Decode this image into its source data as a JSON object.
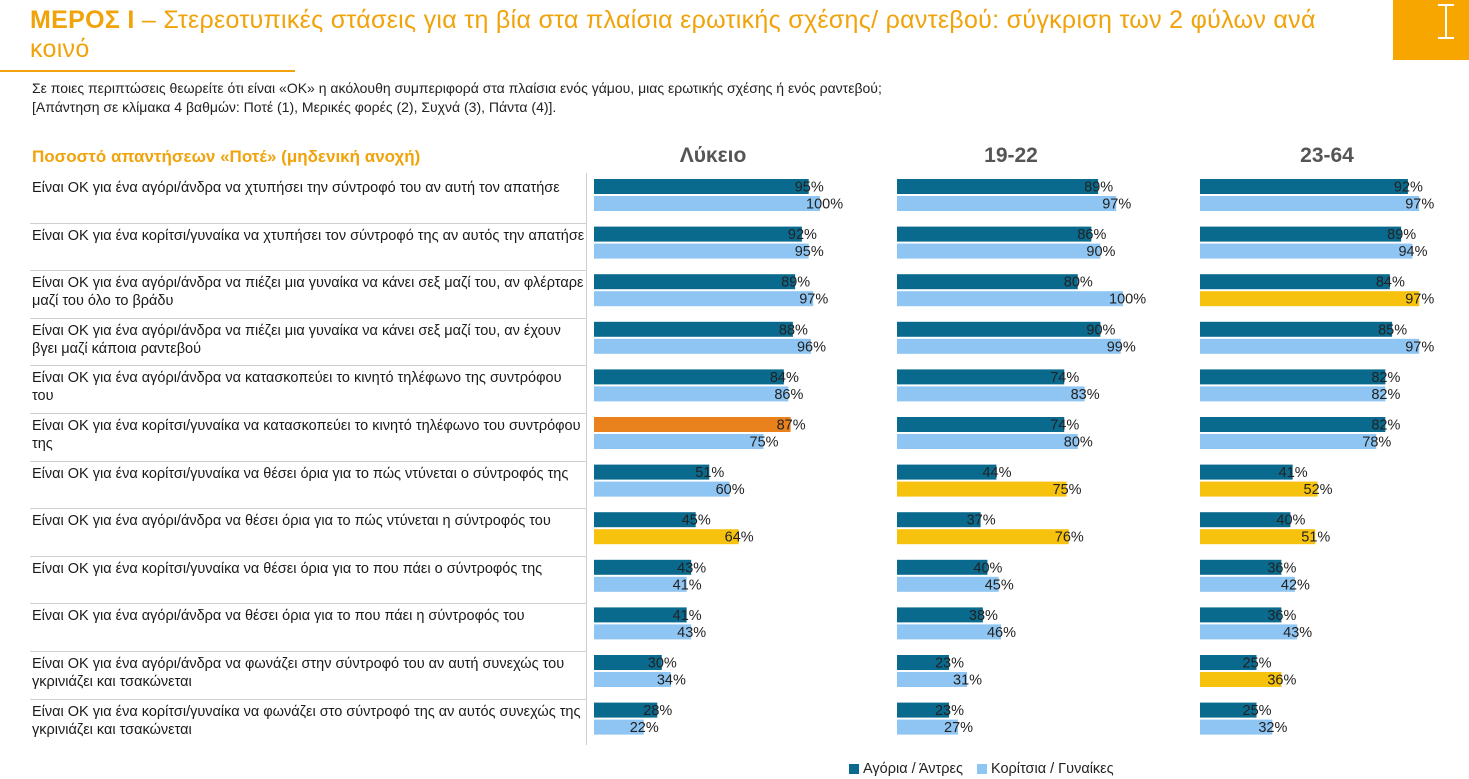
{
  "header": {
    "title_strong": "ΜΕΡΟΣ Ι",
    "title_rest": " – Στερεοτυπικές στάσεις για τη βία στα πλαίσια ερωτικής σχέσης/ ραντεβού: σύγκριση των 2 φύλων ανά κοινό",
    "subtitle": "Σε ποιες περιπτώσεις θεωρείτε ότι είναι «ΟΚ» η ακόλουθη συμπεριφορά στα πλαίσια ενός γάμου, μιας ερωτικής σχέσης ή ενός ραντεβού; [Απάντηση σε κλίμακα 4 βαθμών: Ποτέ (1), Μερικές φορές (2), Συχνά (3), Πάντα (4)].",
    "row_header": "Ποσοστό απαντήσεων «Ποτέ» (μηδενική ανοχή)",
    "corner_mark": "I"
  },
  "chart_data": {
    "type": "bar",
    "orientation": "horizontal",
    "unit": "%",
    "xlim": [
      0,
      100
    ],
    "groups": [
      "Λύκειο",
      "19-22",
      "23-64"
    ],
    "categories": [
      "Είναι ΟΚ για ένα αγόρι/άνδρα να χτυπήσει την σύντροφό του αν αυτή τον απατήσε",
      "Είναι ΟΚ για ένα κορίτσι/γυναίκα να χτυπήσει τον σύντροφό της αν αυτός την απατήσε",
      "Είναι ΟΚ για ένα αγόρι/άνδρα να πιέζει μια γυναίκα να κάνει σεξ μαζί του, αν φλέρταρε μαζί του όλο το βράδυ",
      "Είναι ΟΚ για ένα αγόρι/άνδρα να πιέζει μια γυναίκα να κάνει σεξ μαζί του, αν έχουν βγει μαζί κάποια ραντεβού",
      "Είναι ΟΚ για ένα αγόρι/άνδρα να κατασκοπεύει το κινητό τηλέφωνο της συντρόφου του",
      "Είναι ΟΚ για ένα κορίτσι/γυναίκα να κατασκοπεύει το κινητό τηλέφωνο του συντρόφου της",
      "Είναι ΟΚ για ένα κορίτσι/γυναίκα να θέσει όρια για το πώς ντύνεται ο σύντροφός της",
      "Είναι ΟΚ για ένα αγόρι/άνδρα να θέσει όρια για το πώς ντύνεται η σύντροφός του",
      "Είναι ΟΚ για ένα κορίτσι/γυναίκα να θέσει όρια για το που πάει ο σύντροφός της",
      "Είναι ΟΚ για ένα αγόρι/άνδρα να θέσει όρια για το που πάει η σύντροφός του",
      "Είναι ΟΚ για ένα αγόρι/άνδρα να φωνάζει στην σύντροφό του αν αυτή συνεχώς του γκρινιάζει και τσακώνεται",
      "Είναι ΟΚ για ένα κορίτσι/γυναίκα να φωνάζει στο σύντροφό της αν αυτός συνεχώς της γκρινιάζει και τσακώνεται"
    ],
    "series": [
      {
        "name": "Αγόρια / Άντρες",
        "color": "#0a6a8e",
        "values": {
          "Λύκειο": [
            95,
            92,
            89,
            88,
            84,
            87,
            51,
            45,
            43,
            41,
            30,
            28
          ],
          "19-22": [
            89,
            86,
            80,
            90,
            74,
            74,
            44,
            37,
            40,
            38,
            23,
            23
          ],
          "23-64": [
            92,
            89,
            84,
            85,
            82,
            82,
            41,
            40,
            36,
            36,
            25,
            25
          ]
        }
      },
      {
        "name": "Κορίτσια / Γυναίκες",
        "color": "#8ec5f2",
        "values": {
          "Λύκειο": [
            100,
            95,
            97,
            96,
            86,
            75,
            60,
            64,
            41,
            43,
            34,
            22
          ],
          "19-22": [
            97,
            90,
            100,
            99,
            83,
            80,
            75,
            76,
            45,
            46,
            31,
            27
          ],
          "23-64": [
            97,
            94,
            97,
            97,
            82,
            78,
            52,
            51,
            42,
            43,
            36,
            32
          ]
        }
      }
    ],
    "highlights": [
      {
        "group": "Λύκειο",
        "series": 0,
        "index": 5,
        "color": "#e9821c"
      },
      {
        "group": "Λύκειο",
        "series": 1,
        "index": 7,
        "color": "#f7c20e"
      },
      {
        "group": "19-22",
        "series": 1,
        "index": 6,
        "color": "#f7c20e"
      },
      {
        "group": "19-22",
        "series": 1,
        "index": 7,
        "color": "#f7c20e"
      },
      {
        "group": "23-64",
        "series": 1,
        "index": 2,
        "color": "#f7c20e"
      },
      {
        "group": "23-64",
        "series": 1,
        "index": 6,
        "color": "#f7c20e"
      },
      {
        "group": "23-64",
        "series": 1,
        "index": 7,
        "color": "#f7c20e"
      },
      {
        "group": "23-64",
        "series": 1,
        "index": 10,
        "color": "#f7c20e"
      }
    ],
    "legend": {
      "position": "bottom-right"
    }
  },
  "colors": {
    "accent": "#f0a30a",
    "boys": "#0a6a8e",
    "girls": "#8ec5f2",
    "highlight_yellow": "#f7c20e",
    "highlight_orange": "#e9821c"
  }
}
